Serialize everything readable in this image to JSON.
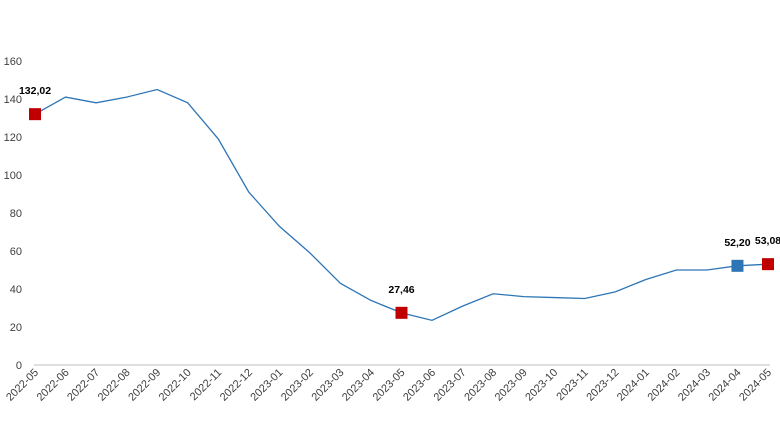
{
  "chart_data": {
    "type": "line",
    "title": "",
    "xlabel": "",
    "ylabel": "",
    "ylim": [
      0,
      160
    ],
    "yticks": [
      "0",
      "20",
      "40",
      "60",
      "80",
      "100",
      "120",
      "140",
      "160"
    ],
    "grid": false,
    "legend": "none",
    "categories": [
      "2022-05",
      "2022-06",
      "2022-07",
      "2022-08",
      "2022-09",
      "2022-10",
      "2022-11",
      "2022-12",
      "2023-01",
      "2023-02",
      "2023-03",
      "2023-04",
      "2023-05",
      "2023-06",
      "2023-07",
      "2023-08",
      "2023-09",
      "2023-10",
      "2023-11",
      "2023-12",
      "2024-01",
      "2024-02",
      "2024-03",
      "2024-04",
      "2024-05"
    ],
    "series": [
      {
        "values": [
          132.02,
          141,
          138,
          141,
          145,
          138,
          119,
          91,
          73,
          59,
          43,
          34,
          27.46,
          23.5,
          31,
          37.5,
          36,
          35.5,
          35,
          38.5,
          45,
          50,
          50,
          52.2,
          53.08
        ],
        "color": "#2e75b6"
      }
    ],
    "highlighted_points": [
      {
        "index": 0,
        "label": "132,02",
        "color": "#c00000"
      },
      {
        "index": 12,
        "label": "27,46",
        "color": "#c00000"
      },
      {
        "index": 23,
        "label": "52,20",
        "color": "#2e75b6"
      },
      {
        "index": 24,
        "label": "53,08",
        "color": "#c00000"
      }
    ]
  }
}
